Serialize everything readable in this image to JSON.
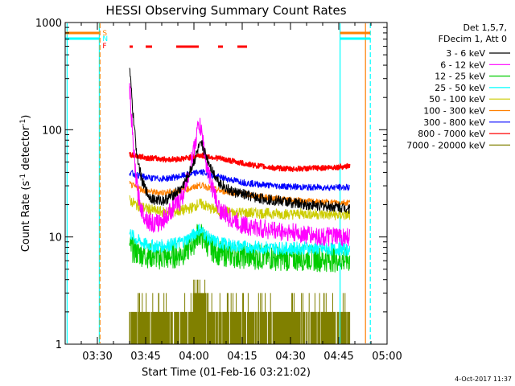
{
  "chart_data": {
    "type": "line",
    "title": "HESSI Observing Summary Count Rates",
    "xlabel": "Start Time (01-Feb-16 03:21:02)",
    "ylabel_main": "Count Rate (s",
    "ylabel_exp1": "-1",
    "ylabel_mid": " detector",
    "ylabel_exp2": "-1",
    "ylabel_close": ")",
    "y_scale": "log",
    "ylim": [
      1,
      1000
    ],
    "xlim_minutes": [
      200,
      300
    ],
    "x_ticks": [
      {
        "label": "03:30",
        "minutes": 210
      },
      {
        "label": "03:45",
        "minutes": 225
      },
      {
        "label": "04:00",
        "minutes": 240
      },
      {
        "label": "04:15",
        "minutes": 255
      },
      {
        "label": "04:30",
        "minutes": 270
      },
      {
        "label": "04:45",
        "minutes": 285
      },
      {
        "label": "05:00",
        "minutes": 300
      }
    ],
    "y_ticks": [
      {
        "label": "1",
        "value": 1
      },
      {
        "label": "10",
        "value": 10
      },
      {
        "label": "100",
        "value": 100
      },
      {
        "label": "1000",
        "value": 1000
      }
    ],
    "legend_header": [
      "Det 1,5,7,",
      "FDecim 1, Att 0"
    ],
    "legend_position": "right",
    "series": [
      {
        "name": "3 - 6 keV",
        "color": "#000000",
        "points": [
          [
            220.0,
            380
          ],
          [
            221.0,
            150
          ],
          [
            222.0,
            70
          ],
          [
            223.0,
            45
          ],
          [
            224.0,
            32
          ],
          [
            226.0,
            24
          ],
          [
            228.0,
            22
          ],
          [
            231.0,
            22
          ],
          [
            233.0,
            24
          ],
          [
            236.0,
            28
          ],
          [
            238.0,
            36
          ],
          [
            240.0,
            50
          ],
          [
            241.5,
            68
          ],
          [
            242.5,
            72
          ],
          [
            244.0,
            55
          ],
          [
            246.0,
            40
          ],
          [
            248.0,
            32
          ],
          [
            251.0,
            27
          ],
          [
            255.0,
            25
          ],
          [
            260.0,
            23
          ],
          [
            265.0,
            22
          ],
          [
            270.0,
            21
          ],
          [
            275.0,
            20
          ],
          [
            280.0,
            19.5
          ],
          [
            285.0,
            19
          ],
          [
            288.5,
            18.5
          ]
        ]
      },
      {
        "name": "6 - 12 keV",
        "color": "#ff00ff",
        "points": [
          [
            220.0,
            260
          ],
          [
            221.0,
            80
          ],
          [
            222.0,
            35
          ],
          [
            223.0,
            22
          ],
          [
            224.0,
            17
          ],
          [
            226.0,
            14
          ],
          [
            228.0,
            13
          ],
          [
            231.0,
            15
          ],
          [
            233.0,
            18
          ],
          [
            236.0,
            22
          ],
          [
            238.0,
            35
          ],
          [
            240.0,
            65
          ],
          [
            241.5,
            115
          ],
          [
            242.5,
            90
          ],
          [
            244.0,
            45
          ],
          [
            246.0,
            27
          ],
          [
            248.0,
            18
          ],
          [
            251.0,
            15
          ],
          [
            255.0,
            13
          ],
          [
            260.0,
            12
          ],
          [
            265.0,
            11.5
          ],
          [
            270.0,
            11
          ],
          [
            275.0,
            10.5
          ],
          [
            280.0,
            10
          ],
          [
            285.0,
            10
          ],
          [
            288.5,
            10
          ]
        ]
      },
      {
        "name": "12 - 25 keV",
        "color": "#00cc00",
        "points": [
          [
            220.0,
            8
          ],
          [
            222.0,
            7.2
          ],
          [
            225.0,
            6.8
          ],
          [
            228.0,
            6.6
          ],
          [
            231.0,
            6.4
          ],
          [
            234.0,
            6.7
          ],
          [
            237.0,
            7.2
          ],
          [
            240.0,
            9
          ],
          [
            241.5,
            11
          ],
          [
            242.5,
            10
          ],
          [
            245.0,
            8
          ],
          [
            248.0,
            7
          ],
          [
            252.0,
            6.8
          ],
          [
            256.0,
            6.6
          ],
          [
            260.0,
            6.5
          ],
          [
            265.0,
            6.4
          ],
          [
            270.0,
            6.3
          ],
          [
            275.0,
            6.4
          ],
          [
            280.0,
            6.2
          ],
          [
            285.0,
            6.2
          ],
          [
            288.5,
            6.1
          ]
        ]
      },
      {
        "name": "25 - 50 keV",
        "color": "#00ffff",
        "points": [
          [
            220.0,
            11
          ],
          [
            222.0,
            9.5
          ],
          [
            225.0,
            8.5
          ],
          [
            228.0,
            8.2
          ],
          [
            231.0,
            8.3
          ],
          [
            234.0,
            8.6
          ],
          [
            237.0,
            9.2
          ],
          [
            240.0,
            10.5
          ],
          [
            241.5,
            11.8
          ],
          [
            243.0,
            11
          ],
          [
            245.0,
            9.5
          ],
          [
            248.0,
            8.8
          ],
          [
            252.0,
            8.3
          ],
          [
            256.0,
            8.1
          ],
          [
            260.0,
            8
          ],
          [
            265.0,
            7.9
          ],
          [
            270.0,
            7.8
          ],
          [
            275.0,
            7.9
          ],
          [
            280.0,
            7.7
          ],
          [
            285.0,
            7.7
          ],
          [
            288.5,
            7.6
          ]
        ]
      },
      {
        "name": "50 - 100 keV",
        "color": "#cccc00",
        "points": [
          [
            220.0,
            22
          ],
          [
            222.0,
            20
          ],
          [
            225.0,
            18.5
          ],
          [
            228.0,
            17.5
          ],
          [
            231.0,
            17
          ],
          [
            234.0,
            17.2
          ],
          [
            237.0,
            17.8
          ],
          [
            240.0,
            19
          ],
          [
            241.5,
            20.5
          ],
          [
            243.0,
            20
          ],
          [
            245.0,
            18.5
          ],
          [
            248.0,
            17.5
          ],
          [
            252.0,
            17
          ],
          [
            256.0,
            16.8
          ],
          [
            260.0,
            16.7
          ],
          [
            265.0,
            16.5
          ],
          [
            270.0,
            16.3
          ],
          [
            275.0,
            16.5
          ],
          [
            280.0,
            16.2
          ],
          [
            285.0,
            16
          ],
          [
            288.5,
            16
          ]
        ]
      },
      {
        "name": "100 - 300 keV",
        "color": "#ff8000",
        "points": [
          [
            220.0,
            31
          ],
          [
            222.0,
            29
          ],
          [
            225.0,
            27
          ],
          [
            228.0,
            26
          ],
          [
            231.0,
            26
          ],
          [
            234.0,
            26.5
          ],
          [
            237.0,
            27.5
          ],
          [
            240.0,
            29
          ],
          [
            241.5,
            30.5
          ],
          [
            243.0,
            30
          ],
          [
            245.0,
            28.5
          ],
          [
            248.0,
            27
          ],
          [
            252.0,
            26
          ],
          [
            256.0,
            25
          ],
          [
            260.0,
            24
          ],
          [
            265.0,
            23
          ],
          [
            270.0,
            22
          ],
          [
            275.0,
            21.5
          ],
          [
            280.0,
            21
          ],
          [
            285.0,
            21
          ],
          [
            288.5,
            21
          ]
        ]
      },
      {
        "name": "300 - 800 keV",
        "color": "#0000ff",
        "points": [
          [
            220.0,
            40
          ],
          [
            222.0,
            38
          ],
          [
            225.0,
            36
          ],
          [
            228.0,
            35
          ],
          [
            231.0,
            35
          ],
          [
            234.0,
            36
          ],
          [
            237.0,
            37.5
          ],
          [
            240.0,
            39
          ],
          [
            241.5,
            40.5
          ],
          [
            243.0,
            40
          ],
          [
            245.0,
            38
          ],
          [
            248.0,
            36
          ],
          [
            252.0,
            34
          ],
          [
            256.0,
            32
          ],
          [
            260.0,
            31
          ],
          [
            265.0,
            30
          ],
          [
            270.0,
            29.5
          ],
          [
            275.0,
            29
          ],
          [
            280.0,
            29
          ],
          [
            285.0,
            29
          ],
          [
            288.5,
            29
          ]
        ]
      },
      {
        "name": "800 - 7000 keV",
        "color": "#ff0000",
        "points": [
          [
            220.0,
            58
          ],
          [
            222.0,
            57
          ],
          [
            225.0,
            55
          ],
          [
            228.0,
            54
          ],
          [
            231.0,
            53
          ],
          [
            234.0,
            53
          ],
          [
            237.0,
            54
          ],
          [
            240.0,
            56
          ],
          [
            241.5,
            58
          ],
          [
            243.0,
            57
          ],
          [
            245.0,
            56
          ],
          [
            248.0,
            54
          ],
          [
            252.0,
            51
          ],
          [
            256.0,
            48
          ],
          [
            260.0,
            46
          ],
          [
            265.0,
            44
          ],
          [
            270.0,
            43
          ],
          [
            275.0,
            43.5
          ],
          [
            280.0,
            44
          ],
          [
            285.0,
            45
          ],
          [
            288.5,
            46
          ]
        ]
      },
      {
        "name": "7000 - 20000 keV",
        "color": "#808000",
        "points": [
          [
            220.0,
            2
          ],
          [
            224.0,
            2
          ],
          [
            228.0,
            2
          ],
          [
            232.0,
            2
          ],
          [
            236.0,
            2
          ],
          [
            239.0,
            2.3
          ],
          [
            240.5,
            2.7
          ],
          [
            242.0,
            3
          ],
          [
            243.5,
            2.7
          ],
          [
            245.0,
            2.3
          ],
          [
            248.0,
            2
          ],
          [
            252.0,
            2
          ],
          [
            256.0,
            2
          ],
          [
            260.0,
            2
          ],
          [
            265.0,
            2
          ],
          [
            270.0,
            2
          ],
          [
            275.0,
            2
          ],
          [
            280.0,
            2
          ],
          [
            285.0,
            2
          ],
          [
            288.5,
            2
          ]
        ]
      }
    ],
    "flags": [
      {
        "label": "S",
        "color": "#ff8000"
      },
      {
        "label": "N",
        "color": "#00ffff"
      },
      {
        "label": "F",
        "color": "#ff0000"
      }
    ],
    "flag_segments_minutes": [
      [
        220.0,
        221.0
      ],
      [
        225.0,
        227.0
      ],
      [
        234.5,
        241.5
      ],
      [
        247.5,
        249.0
      ],
      [
        253.5,
        256.5
      ]
    ],
    "vertical_markers": [
      {
        "minutes": 200.6,
        "color": "#00ffff",
        "style": "solid"
      },
      {
        "minutes": 210.6,
        "color": "#00ffff",
        "style": "solid"
      },
      {
        "minutes": 210.8,
        "color": "#ff8000",
        "style": "dash"
      },
      {
        "minutes": 285.4,
        "color": "#00ffff",
        "style": "solid"
      },
      {
        "minutes": 293.3,
        "color": "#ff8000",
        "style": "solid"
      },
      {
        "minutes": 294.8,
        "color": "#00ffff",
        "style": "dash"
      }
    ],
    "timestamp": "4-Oct-2017 11:37"
  }
}
